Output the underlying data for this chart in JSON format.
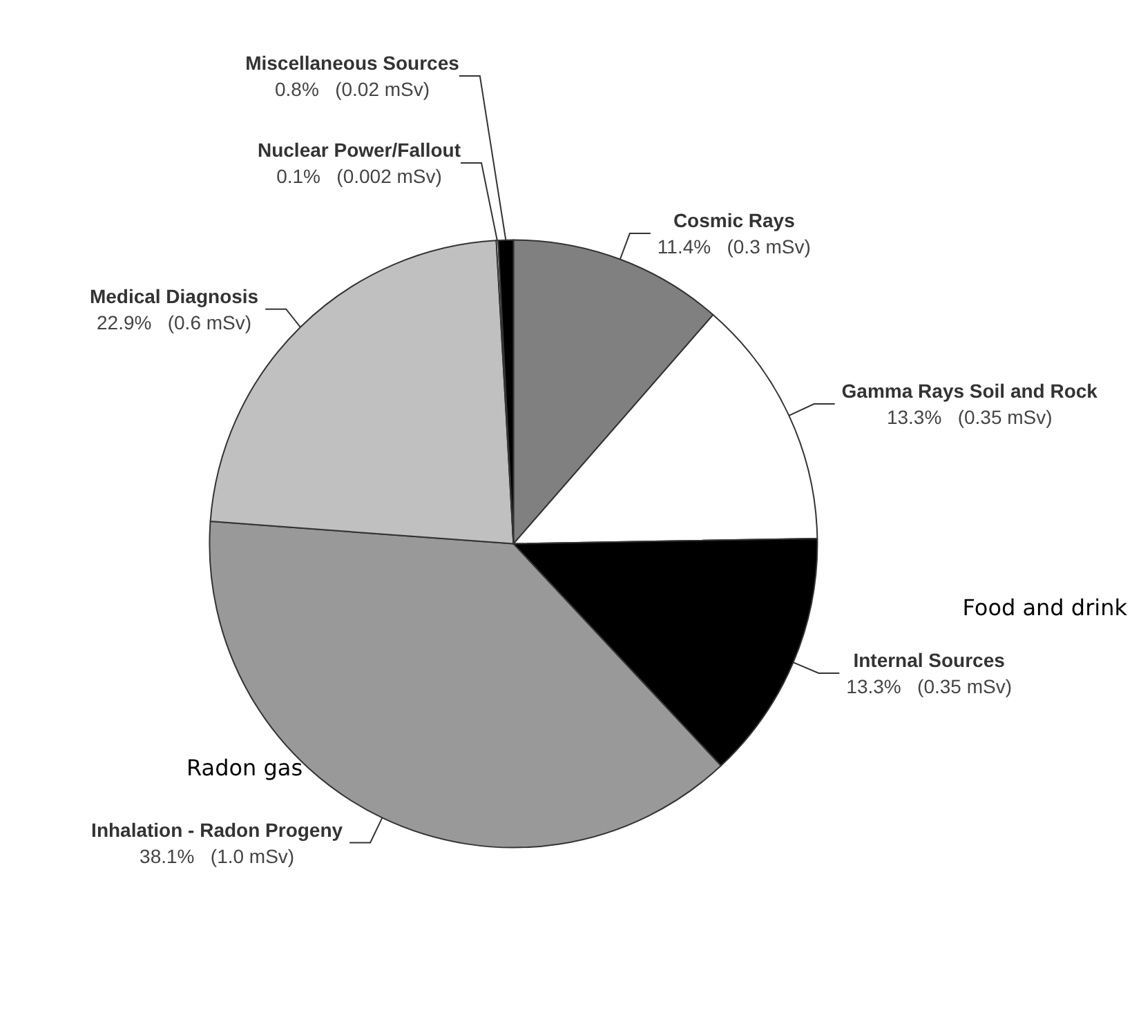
{
  "chart_data": {
    "type": "pie",
    "categories": [
      "Cosmic Rays",
      "Gamma Rays Soil and Rock",
      "Internal Sources",
      "Inhalation - Radon Progeny",
      "Medical Diagnosis",
      "Nuclear Power/Fallout",
      "Miscellaneous Sources"
    ],
    "values": [
      11.4,
      13.3,
      13.3,
      38.1,
      22.9,
      0.1,
      0.8
    ],
    "colors": [
      "#808080",
      "#ffffff",
      "#000000",
      "#999999",
      "#c0c0c0",
      "#ffffff",
      "#000000"
    ],
    "value_labels": [
      "11.4%   (0.3 mSv)",
      "13.3%   (0.35 mSv)",
      "13.3%   (0.35 mSv)",
      "38.1%   (1.0 mSv)",
      "22.9%   (0.6 mSv)",
      "0.1%   (0.002 mSv)",
      "0.8%   (0.02 mSv)"
    ],
    "annotations": [
      "Food and drink",
      "Radon gas"
    ]
  }
}
